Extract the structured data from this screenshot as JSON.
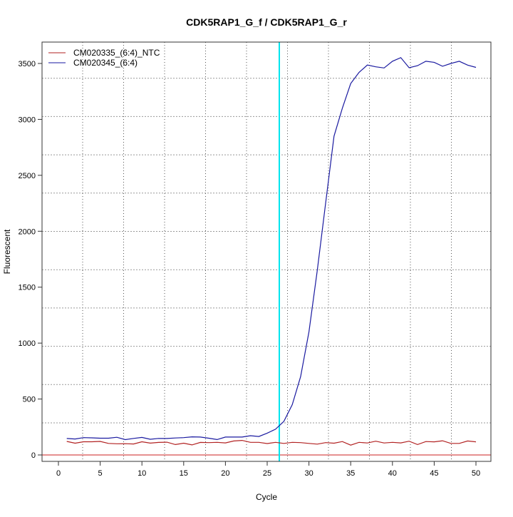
{
  "chart_data": {
    "type": "line",
    "title": "CDK5RAP1_G_f / CDK5RAP1_G_r",
    "xlabel": "Cycle",
    "ylabel": "Fluorescent",
    "xlim": [
      -2,
      52
    ],
    "ylim": [
      -50,
      3700
    ],
    "xticks": [
      0,
      5,
      10,
      15,
      20,
      25,
      30,
      35,
      40,
      45,
      50
    ],
    "yticks": [
      0,
      500,
      1000,
      1500,
      2000,
      2500,
      3000,
      3500
    ],
    "grid": true,
    "legend_position": "top-left",
    "threshold_cycle": 26.45,
    "baseline_value": 0,
    "colors": {
      "ntc": "#b22222",
      "sample": "#1a1aa0",
      "threshold": "#00e5ee",
      "baseline": "#cc2222"
    },
    "x": [
      1,
      2,
      3,
      4,
      5,
      6,
      7,
      8,
      9,
      10,
      11,
      12,
      13,
      14,
      15,
      16,
      17,
      18,
      19,
      20,
      21,
      22,
      23,
      24,
      25,
      26,
      27,
      28,
      29,
      30,
      31,
      32,
      33,
      34,
      35,
      36,
      37,
      38,
      39,
      40,
      41,
      42,
      43,
      44,
      45,
      46,
      47,
      48,
      49,
      50
    ],
    "series": [
      {
        "name": "CM020335_(6:4)_NTC",
        "color": "#b22222",
        "values": [
          121,
          105,
          118,
          118,
          121,
          103,
          100,
          101,
          98,
          118,
          106,
          112,
          114,
          93,
          105,
          90,
          112,
          110,
          113,
          108,
          125,
          130,
          113,
          113,
          102,
          113,
          103,
          113,
          110,
          103,
          97,
          110,
          105,
          120,
          88,
          113,
          107,
          123,
          107,
          113,
          108,
          123,
          93,
          120,
          117,
          127,
          103,
          103,
          125,
          117
        ]
      },
      {
        "name": "CM020345_(6:4)",
        "color": "#1a1aa0",
        "values": [
          147,
          143,
          155,
          153,
          150,
          150,
          158,
          137,
          148,
          157,
          140,
          148,
          147,
          152,
          155,
          162,
          160,
          150,
          138,
          160,
          160,
          160,
          172,
          165,
          195,
          230,
          300,
          450,
          700,
          1100,
          1650,
          2250,
          2850,
          3100,
          3320,
          3420,
          3486,
          3470,
          3460,
          3520,
          3552,
          3462,
          3480,
          3520,
          3510,
          3475,
          3500,
          3520,
          3485,
          3465
        ]
      }
    ]
  }
}
